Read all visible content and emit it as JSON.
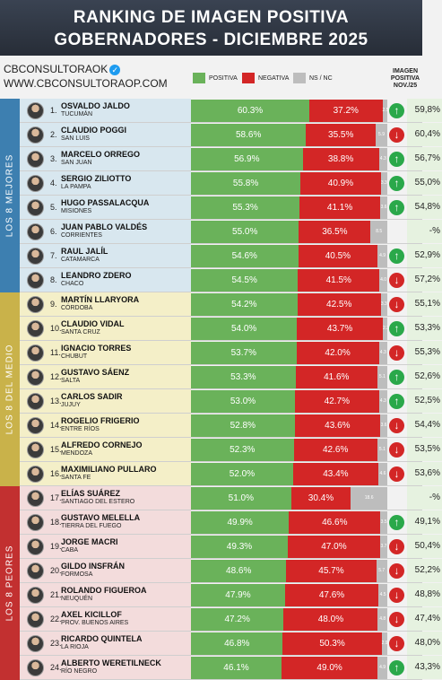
{
  "header": {
    "title_line1": "RANKING DE IMAGEN POSITIVA",
    "title_line2": "GOBERNADORES - DICIEMBRE 2025"
  },
  "brand": {
    "handle": "CBCONSULTORAOK",
    "url": "WWW.CBCONSULTORAOP.COM"
  },
  "legend": {
    "positive": "POSITIVA",
    "negative": "NEGATIVA",
    "nsnc": "NS / NC"
  },
  "prev_column_header": "IMAGEN POSITIVA NOV./25",
  "colors": {
    "positive": "#6ab25a",
    "negative": "#d32626",
    "nsnc": "#bdbdbd",
    "up": "#2aa84a",
    "down": "#d32626",
    "group_top": "#d8e7ef",
    "group_middle": "#f4efc8",
    "group_bottom": "#f3dcdc",
    "group_label_top": "#3d7fb0",
    "group_label_middle": "#c9b24a",
    "group_label_bottom": "#c23030"
  },
  "groups": [
    {
      "label": "LOS 8 MEJORES",
      "first": 0,
      "count": 8,
      "color_key": "top"
    },
    {
      "label": "LOS 8 DEL MEDIO",
      "first": 8,
      "count": 8,
      "color_key": "middle"
    },
    {
      "label": "LOS 8 PEORES",
      "first": 16,
      "count": 8,
      "color_key": "bottom"
    }
  ],
  "chart_data": {
    "type": "bar",
    "subtype": "stacked-horizontal-100",
    "title": "RANKING DE IMAGEN POSITIVA GOBERNADORES - DICIEMBRE 2025",
    "series_names": [
      "POSITIVA",
      "NEGATIVA",
      "NS / NC"
    ],
    "rows": [
      {
        "rank": "1.",
        "name": "OSVALDO JALDO",
        "province": "TUCUMÁN",
        "positive": 60.3,
        "negative": 37.2,
        "nsnc": 2.5,
        "nsnc_label": "2.5",
        "trend": "up",
        "prev": "59,8%"
      },
      {
        "rank": "2.",
        "name": "CLAUDIO POGGI",
        "province": "SAN LUIS",
        "positive": 58.6,
        "negative": 35.5,
        "nsnc": 5.9,
        "nsnc_label": "5.9",
        "trend": "down",
        "prev": "60,4%"
      },
      {
        "rank": "3.",
        "name": "MARCELO ORREGO",
        "province": "SAN JUAN",
        "positive": 56.9,
        "negative": 38.8,
        "nsnc": 4.3,
        "nsnc_label": "4.3",
        "trend": "up",
        "prev": "56,7%"
      },
      {
        "rank": "4.",
        "name": "SERGIO ZILIOTTO",
        "province": "LA PAMPA",
        "positive": 55.8,
        "negative": 40.9,
        "nsnc": 3.3,
        "nsnc_label": "3.3",
        "trend": "up",
        "prev": "55,0%"
      },
      {
        "rank": "5.",
        "name": "HUGO PASSALACQUA",
        "province": "MISIONES",
        "positive": 55.3,
        "negative": 41.1,
        "nsnc": 3.6,
        "nsnc_label": "3.6",
        "trend": "up",
        "prev": "54,8%"
      },
      {
        "rank": "6.",
        "name": "JUAN PABLO VALDÉS",
        "province": "CORRIENTES",
        "positive": 55.0,
        "negative": 36.5,
        "nsnc": 8.5,
        "nsnc_label": "8.5",
        "trend": "none",
        "prev": "-%"
      },
      {
        "rank": "7.",
        "name": "RAUL JALÍL",
        "province": "CATAMARCA",
        "positive": 54.6,
        "negative": 40.5,
        "nsnc": 4.9,
        "nsnc_label": "4.9",
        "trend": "up",
        "prev": "52,9%"
      },
      {
        "rank": "8.",
        "name": "LEANDRO ZDERO",
        "province": "CHACO",
        "positive": 54.5,
        "negative": 41.5,
        "nsnc": 4.0,
        "nsnc_label": "4.0",
        "trend": "down",
        "prev": "57,2%"
      },
      {
        "rank": "9.",
        "name": "MARTÍN LLARYORA",
        "province": "CÓRDOBA",
        "positive": 54.2,
        "negative": 42.5,
        "nsnc": 3.3,
        "nsnc_label": "3.3",
        "trend": "down",
        "prev": "55,1%"
      },
      {
        "rank": "10.",
        "name": "CLAUDIO VIDAL",
        "province": "SANTA CRUZ",
        "positive": 54.0,
        "negative": 43.7,
        "nsnc": 2.3,
        "nsnc_label": "2.3",
        "trend": "up",
        "prev": "53,3%"
      },
      {
        "rank": "11.",
        "name": "IGNACIO TORRES",
        "province": "CHUBUT",
        "positive": 53.7,
        "negative": 42.0,
        "nsnc": 4.3,
        "nsnc_label": "4.3",
        "trend": "down",
        "prev": "55,3%"
      },
      {
        "rank": "12.",
        "name": "GUSTAVO SÁENZ",
        "province": "SALTA",
        "positive": 53.3,
        "negative": 41.6,
        "nsnc": 5.1,
        "nsnc_label": "5.1",
        "trend": "up",
        "prev": "52,6%"
      },
      {
        "rank": "13.",
        "name": "CARLOS SADIR",
        "province": "JUJUY",
        "positive": 53.0,
        "negative": 42.7,
        "nsnc": 4.3,
        "nsnc_label": "4.3",
        "trend": "up",
        "prev": "52,5%"
      },
      {
        "rank": "14.",
        "name": "ROGELIO FRIGERIO",
        "province": "ENTRE RÍOS",
        "positive": 52.8,
        "negative": 43.6,
        "nsnc": 3.6,
        "nsnc_label": "3.6",
        "trend": "down",
        "prev": "54,4%"
      },
      {
        "rank": "15.",
        "name": "ALFREDO CORNEJO",
        "province": "MENDOZA",
        "positive": 52.3,
        "negative": 42.6,
        "nsnc": 5.1,
        "nsnc_label": "5.1",
        "trend": "down",
        "prev": "53,5%"
      },
      {
        "rank": "16.",
        "name": "MAXIMILIANO PULLARO",
        "province": "SANTA FE",
        "positive": 52.0,
        "negative": 43.4,
        "nsnc": 4.6,
        "nsnc_label": "4.6",
        "trend": "down",
        "prev": "53,6%"
      },
      {
        "rank": "17.",
        "name": "ELÍAS SUÁREZ",
        "province": "SANTIAGO DEL ESTERO",
        "positive": 51.0,
        "negative": 30.4,
        "nsnc": 18.6,
        "nsnc_label": "18.6",
        "trend": "none",
        "prev": "-%"
      },
      {
        "rank": "18.",
        "name": "GUSTAVO MELELLA",
        "province": "TIERRA DEL FUEGO",
        "positive": 49.9,
        "negative": 46.6,
        "nsnc": 3.5,
        "nsnc_label": "3.5",
        "trend": "up",
        "prev": "49,1%"
      },
      {
        "rank": "19.",
        "name": "JORGE MACRI",
        "province": "CABA",
        "positive": 49.3,
        "negative": 47.0,
        "nsnc": 3.7,
        "nsnc_label": "3.7",
        "trend": "down",
        "prev": "50,4%"
      },
      {
        "rank": "20.",
        "name": "GILDO INSFRÁN",
        "province": "FORMOSA",
        "positive": 48.6,
        "negative": 45.7,
        "nsnc": 5.7,
        "nsnc_label": "5.7",
        "trend": "down",
        "prev": "52,2%"
      },
      {
        "rank": "21.",
        "name": "ROLANDO FIGUEROA",
        "province": "NEUQUÉN",
        "positive": 47.9,
        "negative": 47.6,
        "nsnc": 4.5,
        "nsnc_label": "4.5",
        "trend": "down",
        "prev": "48,8%"
      },
      {
        "rank": "22.",
        "name": "AXEL KICILLOF",
        "province": "PROV. BUENOS AIRES",
        "positive": 47.2,
        "negative": 48.0,
        "nsnc": 4.8,
        "nsnc_label": "4.8",
        "trend": "down",
        "prev": "47,4%"
      },
      {
        "rank": "23.",
        "name": "RICARDO QUINTELA",
        "province": "LA RIOJA",
        "positive": 46.8,
        "negative": 50.3,
        "nsnc": 2.9,
        "nsnc_label": "2.9",
        "trend": "down",
        "prev": "48,0%"
      },
      {
        "rank": "24.",
        "name": "ALBERTO WERETILNECK",
        "province": "RÍO NEGRO",
        "positive": 46.1,
        "negative": 49.0,
        "nsnc": 4.9,
        "nsnc_label": "4.9",
        "trend": "up",
        "prev": "43,3%"
      }
    ]
  }
}
